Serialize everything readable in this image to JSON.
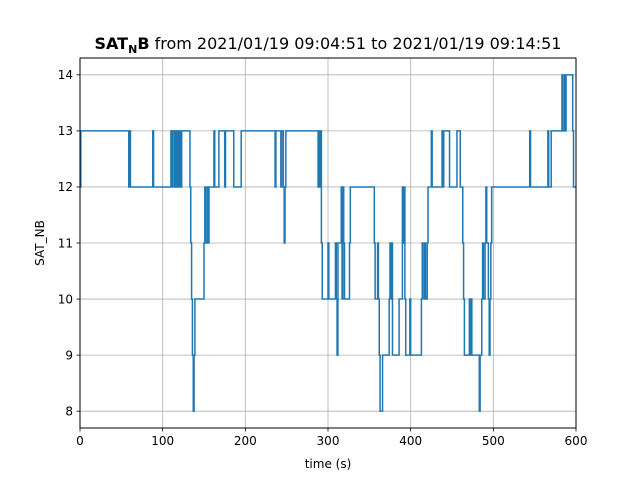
{
  "chart_data": {
    "type": "line",
    "title_bold": "SAT",
    "title_sub": "N",
    "title_bold_tail": "B",
    "title_rest": " from 2021/01/19 09:04:51 to 2021/01/19 09:14:51",
    "xlabel": "time (s)",
    "ylabel": "SAT_NB",
    "xlim": [
      0,
      600
    ],
    "ylim": [
      7.7,
      14.3
    ],
    "xticks": [
      0,
      100,
      200,
      300,
      400,
      500,
      600
    ],
    "yticks": [
      8,
      9,
      10,
      11,
      12,
      13,
      14
    ],
    "grid": true,
    "line_color": "#1f77b4",
    "series": [
      {
        "x": [
          0,
          1,
          2,
          59,
          60,
          61,
          62,
          88,
          89,
          90,
          110,
          111,
          112,
          114,
          115,
          116,
          117,
          118,
          119,
          120,
          121,
          122,
          123,
          124,
          133,
          134,
          135,
          136,
          137,
          138,
          139,
          140,
          141,
          150,
          151,
          152,
          154,
          155,
          156,
          157,
          162,
          163,
          167,
          168,
          175,
          176,
          185,
          186,
          195,
          196,
          236,
          237,
          243,
          244,
          246,
          247,
          248,
          249,
          250,
          251,
          288,
          289,
          290,
          291,
          292,
          293,
          294,
          300,
          301,
          308,
          309,
          310,
          311,
          312,
          316,
          317,
          318,
          319,
          320,
          326,
          327,
          355,
          356,
          357,
          360,
          361,
          362,
          363,
          364,
          365,
          366,
          367,
          374,
          375,
          376,
          377,
          378,
          384,
          385,
          386,
          390,
          391,
          392,
          393,
          394,
          398,
          399,
          400,
          401,
          412,
          413,
          414,
          416,
          417,
          418,
          420,
          421,
          424,
          425,
          426,
          427,
          438,
          439,
          440,
          441,
          446,
          447,
          455,
          456,
          460,
          461,
          463,
          464,
          465,
          466,
          470,
          471,
          472,
          473,
          474,
          482,
          483,
          484,
          486,
          487,
          488,
          490,
          491,
          492,
          494,
          495,
          496,
          497,
          498,
          503,
          504,
          544,
          545,
          547,
          548,
          566,
          567,
          570,
          571,
          582,
          583,
          584,
          586,
          587,
          588,
          589,
          590,
          596,
          597,
          600
        ],
        "y": [
          12,
          13,
          13,
          12,
          13,
          12,
          12,
          13,
          12,
          12,
          13,
          12,
          13,
          12,
          13,
          12,
          13,
          12,
          13,
          12,
          13,
          12,
          13,
          13,
          12,
          11,
          10,
          9,
          8,
          9,
          10,
          10,
          10,
          11,
          12,
          11,
          12,
          11,
          12,
          12,
          13,
          12,
          12,
          13,
          12,
          13,
          13,
          12,
          13,
          13,
          12,
          13,
          12,
          13,
          12,
          11,
          12,
          13,
          13,
          13,
          12,
          13,
          12,
          13,
          11,
          10,
          10,
          11,
          10,
          10,
          11,
          10,
          9,
          11,
          12,
          10,
          12,
          11,
          10,
          11,
          12,
          12,
          11,
          10,
          11,
          10,
          9,
          8,
          8,
          8,
          9,
          9,
          10,
          11,
          10,
          11,
          9,
          9,
          9,
          10,
          12,
          11,
          12,
          10,
          9,
          9,
          10,
          9,
          9,
          9,
          10,
          11,
          10,
          11,
          10,
          11,
          12,
          12,
          13,
          12,
          12,
          13,
          12,
          13,
          13,
          13,
          12,
          12,
          13,
          12,
          12,
          11,
          10,
          9,
          9,
          9,
          10,
          9,
          10,
          9,
          9,
          8,
          9,
          10,
          11,
          10,
          11,
          12,
          11,
          10,
          9,
          10,
          11,
          12,
          12,
          12,
          13,
          12,
          12,
          12,
          13,
          12,
          13,
          13,
          13,
          14,
          13,
          14,
          13,
          14,
          14,
          14,
          13,
          12,
          12
        ]
      }
    ]
  }
}
